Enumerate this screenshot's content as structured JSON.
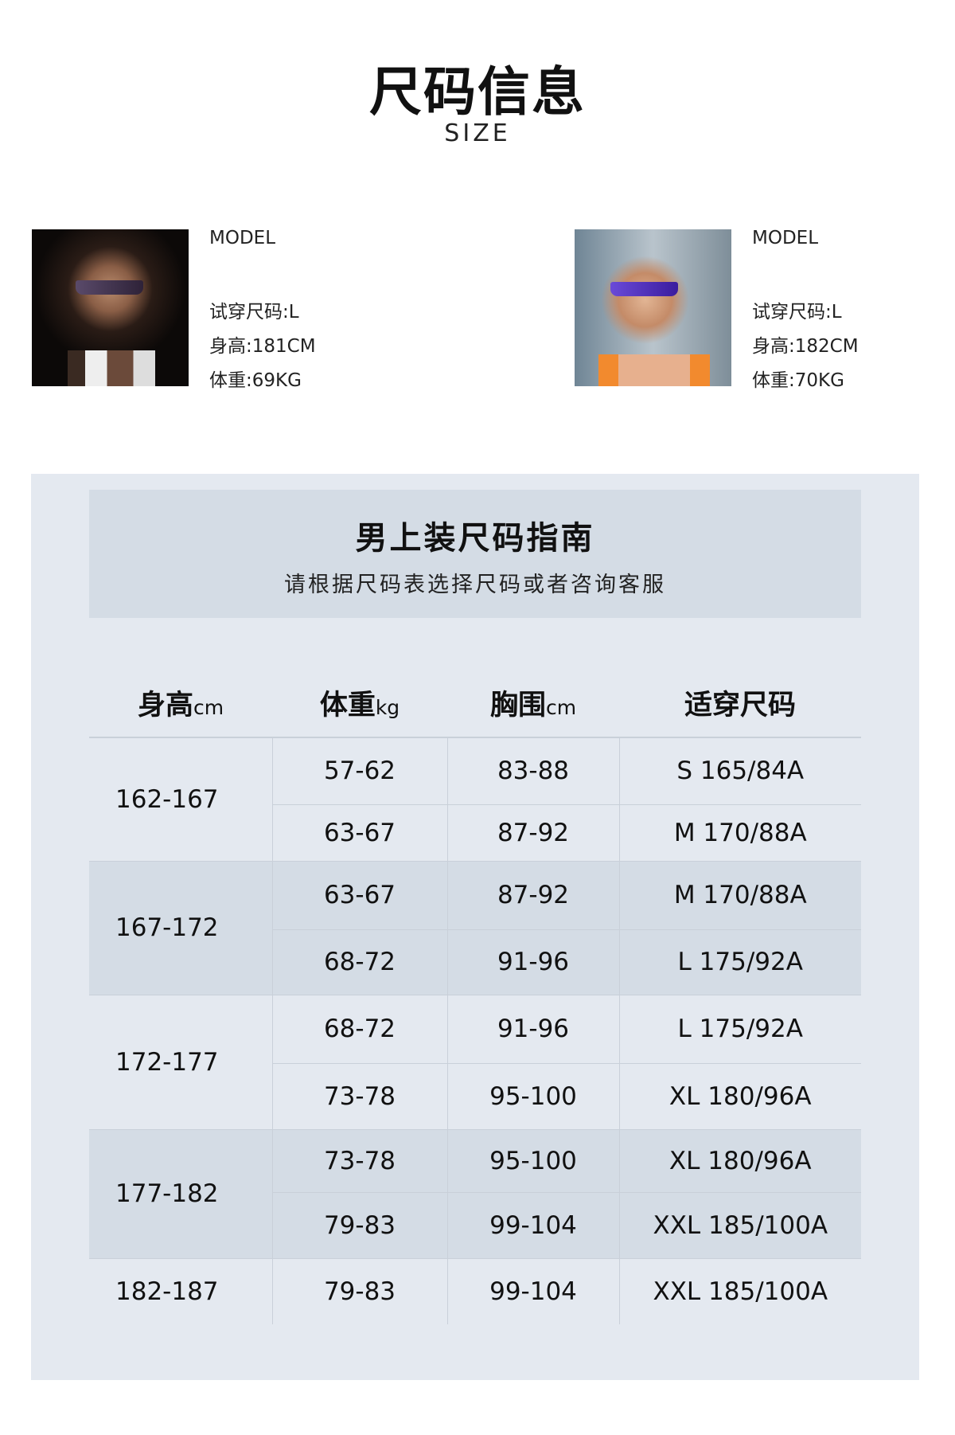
{
  "header": {
    "title": "尺码信息",
    "subtitle": "SIZE"
  },
  "models": [
    {
      "label": "MODEL",
      "size": "试穿尺码:L",
      "height": "身高:181CM",
      "weight": "体重:69KG"
    },
    {
      "label": "MODEL",
      "size": "试穿尺码:L",
      "height": "身高:182CM",
      "weight": "体重:70KG"
    }
  ],
  "guide": {
    "title": "男上装尺码指南",
    "subtitle": "请根据尺码表选择尺码或者咨询客服"
  },
  "table": {
    "columns": [
      {
        "label": "身高",
        "unit": "cm"
      },
      {
        "label": "体重",
        "unit": "kg"
      },
      {
        "label": "胸围",
        "unit": "cm"
      },
      {
        "label": "适穿尺码",
        "unit": ""
      }
    ],
    "groups": [
      {
        "height": "162-167",
        "rows": [
          [
            "57-62",
            "83-88",
            "S 165/84A"
          ],
          [
            "63-67",
            "87-92",
            "M 170/88A"
          ]
        ]
      },
      {
        "height": "167-172",
        "rows": [
          [
            "63-67",
            "87-92",
            "M 170/88A"
          ],
          [
            "68-72",
            "91-96",
            "L 175/92A"
          ]
        ]
      },
      {
        "height": "172-177",
        "rows": [
          [
            "68-72",
            "91-96",
            "L 175/92A"
          ],
          [
            "73-78",
            "95-100",
            "XL 180/96A"
          ]
        ]
      },
      {
        "height": "177-182",
        "rows": [
          [
            "73-78",
            "95-100",
            "XL 180/96A"
          ],
          [
            "79-83",
            "99-104",
            "XXL 185/100A"
          ]
        ]
      },
      {
        "height": "182-187",
        "rows": [
          [
            "79-83",
            "99-104",
            "XXL 185/100A"
          ]
        ]
      }
    ]
  },
  "colors": {
    "panel": "#e4e9f0",
    "band": "#d4dce5"
  }
}
